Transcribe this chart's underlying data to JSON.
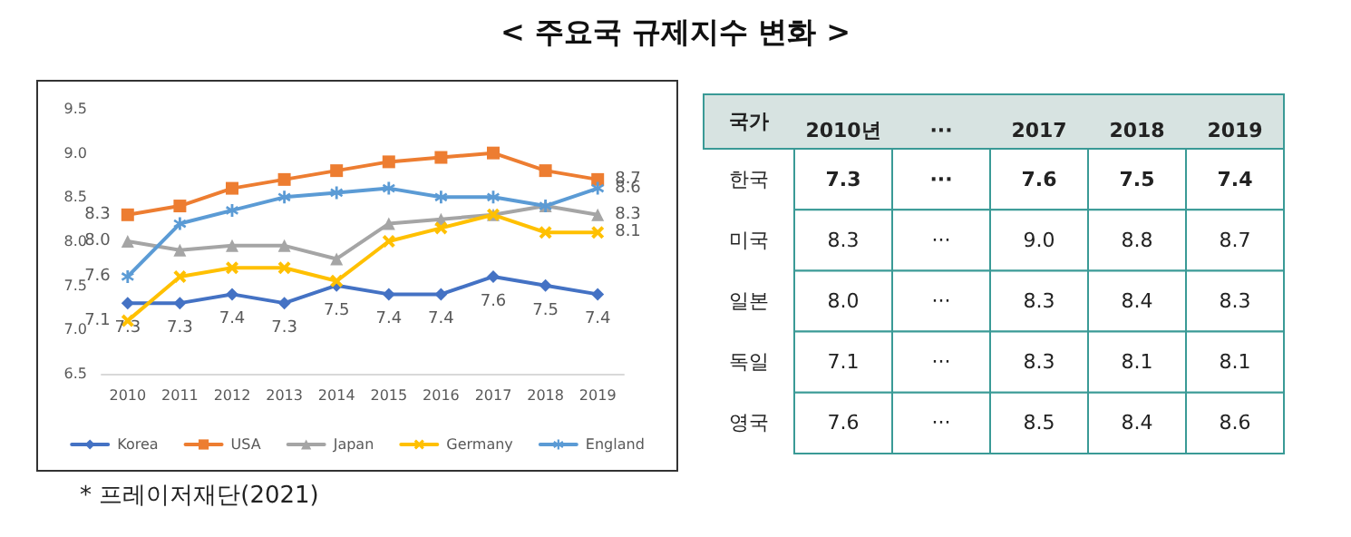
{
  "chart_data": [
    {
      "type": "line",
      "title": "< 주요국 규제지수 변화 >",
      "annotations": [
        "* 프레이저재단(2021)"
      ],
      "categories": [
        "2010",
        "2011",
        "2012",
        "2013",
        "2014",
        "2015",
        "2016",
        "2017",
        "2018",
        "2019"
      ],
      "ylim": [
        6.5,
        9.5
      ],
      "yticks": [
        6.5,
        {
          "value": 7,
          "label": "7.0"
        },
        7.5,
        {
          "value": 8,
          "label": "8.0"
        },
        8.5,
        {
          "value": 9,
          "label": "9.0"
        },
        9.5
      ],
      "grid": false,
      "legend": "bottom",
      "series": [
        {
          "name": "Korea",
          "color": "#4472c4",
          "marker": "diamond",
          "values": [
            7.3,
            7.3,
            7.4,
            7.3,
            7.5,
            7.4,
            7.4,
            7.6,
            7.5,
            7.4
          ],
          "value_labels": [
            "7.3",
            "7.3",
            "7.4",
            "7.3",
            "7.5",
            "7.4",
            "7.4",
            "7.6",
            "7.5",
            "7.4"
          ]
        },
        {
          "name": "USA",
          "color": "#ed7d31",
          "marker": "square",
          "values": [
            8.3,
            8.4,
            8.6,
            8.7,
            8.8,
            8.9,
            8.95,
            9.0,
            8.8,
            8.7
          ],
          "value_labels": [
            "8.3",
            null,
            null,
            null,
            null,
            null,
            null,
            null,
            null,
            "8.7"
          ]
        },
        {
          "name": "Japan",
          "color": "#a5a5a5",
          "marker": "triangle",
          "values": [
            8.0,
            7.9,
            7.95,
            7.95,
            7.8,
            8.2,
            8.25,
            8.3,
            8.4,
            8.3
          ],
          "value_labels": [
            "8.0",
            null,
            null,
            null,
            null,
            null,
            null,
            null,
            null,
            "8.3"
          ]
        },
        {
          "name": "Germany",
          "color": "#ffc000",
          "marker": "cross",
          "values": [
            7.1,
            7.6,
            7.7,
            7.7,
            7.55,
            8.0,
            8.15,
            8.3,
            8.1,
            8.1
          ],
          "value_labels": [
            "7.1",
            null,
            null,
            null,
            null,
            null,
            null,
            null,
            null,
            "8.1"
          ]
        },
        {
          "name": "England",
          "color": "#5b9bd5",
          "marker": "star",
          "values": [
            7.6,
            8.2,
            8.35,
            8.5,
            8.55,
            8.6,
            8.5,
            8.5,
            8.4,
            8.6
          ],
          "value_labels": [
            "7.6",
            null,
            null,
            null,
            null,
            null,
            null,
            null,
            null,
            "8.6"
          ]
        }
      ]
    },
    {
      "type": "heatmap",
      "ylabel": "국가",
      "categories": [
        "2010년",
        "···",
        "2017",
        "2018",
        "2019"
      ],
      "y_categories": [
        "한국",
        "미국",
        "일본",
        "독일",
        "영국"
      ],
      "cells": [
        [
          null,
          null,
          null,
          null,
          null
        ],
        [
          null,
          null,
          null,
          null,
          null
        ],
        [
          null,
          null,
          null,
          null,
          null
        ],
        [
          null,
          null,
          null,
          null,
          null
        ],
        [
          null,
          null,
          null,
          null,
          null
        ]
      ],
      "cell_labels": [
        [
          "7.3",
          "···",
          "7.6",
          "7.5",
          "7.4"
        ],
        [
          "8.3",
          "···",
          "9.0",
          "8.8",
          "8.7"
        ],
        [
          "8.0",
          "···",
          "8.3",
          "8.4",
          "8.3"
        ],
        [
          "7.1",
          "···",
          "8.3",
          "8.1",
          "8.1"
        ],
        [
          "7.6",
          "···",
          "8.5",
          "8.4",
          "8.6"
        ]
      ]
    }
  ]
}
